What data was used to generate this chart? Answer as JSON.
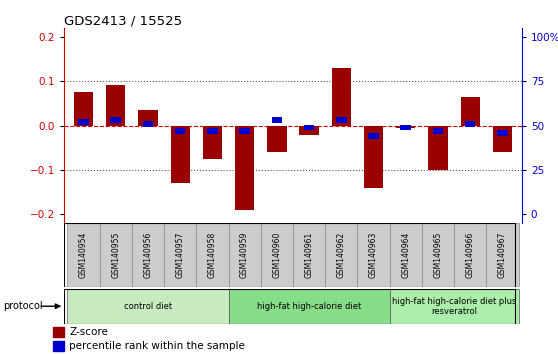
{
  "title": "GDS2413 / 15525",
  "samples": [
    "GSM140954",
    "GSM140955",
    "GSM140956",
    "GSM140957",
    "GSM140958",
    "GSM140959",
    "GSM140960",
    "GSM140961",
    "GSM140962",
    "GSM140963",
    "GSM140964",
    "GSM140965",
    "GSM140966",
    "GSM140967"
  ],
  "z_scores": [
    0.075,
    0.093,
    0.035,
    -0.13,
    -0.075,
    -0.19,
    -0.06,
    -0.02,
    0.13,
    -0.14,
    -0.005,
    -0.1,
    0.065,
    -0.06
  ],
  "percentile_ranks": [
    52,
    53,
    51,
    47,
    47,
    47,
    53,
    49,
    53,
    44,
    49,
    47,
    51,
    46
  ],
  "protocol_groups": [
    {
      "label": "control diet",
      "start": 0,
      "end": 4,
      "color": "#c8ecc0"
    },
    {
      "label": "high-fat high-calorie diet",
      "start": 5,
      "end": 9,
      "color": "#88dd88"
    },
    {
      "label": "high-fat high-calorie diet plus\nresveratrol",
      "start": 10,
      "end": 13,
      "color": "#aaeeaa"
    }
  ],
  "bar_color": "#990000",
  "pct_color": "#0000cc",
  "ylim": [
    -0.22,
    0.22
  ],
  "yticks_left": [
    -0.2,
    -0.1,
    0.0,
    0.1,
    0.2
  ],
  "yticks_right": [
    0,
    25,
    50,
    75,
    100
  ],
  "yticks_right_vals": [
    -0.2,
    -0.1,
    0.0,
    0.1,
    0.2
  ],
  "hline_color": "#cc0000",
  "dotted_color": "#555555",
  "tick_label_area_color": "#cccccc",
  "legend_zscore": "Z-score",
  "legend_pct": "percentile rank within the sample"
}
